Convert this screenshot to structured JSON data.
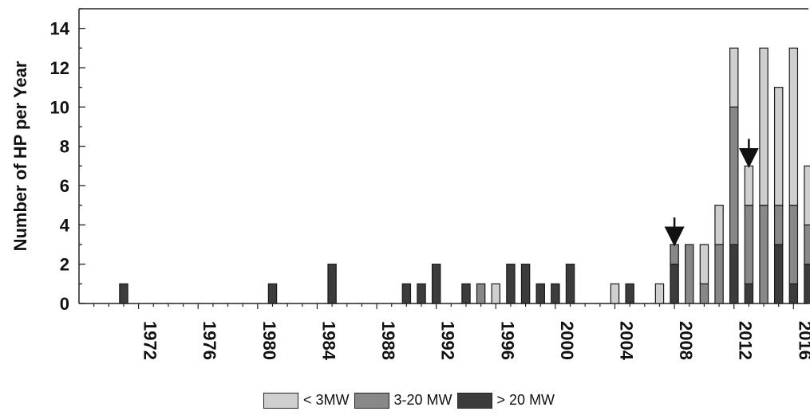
{
  "chart_data": {
    "type": "bar",
    "stacked": true,
    "ylabel": "Number of HP per Year",
    "xlabel": "",
    "xlim": [
      1968,
      2017
    ],
    "ylim": [
      0,
      15
    ],
    "yticks": [
      0,
      2,
      4,
      6,
      8,
      10,
      12,
      14
    ],
    "xticks": [
      1972,
      1976,
      1980,
      1984,
      1988,
      1992,
      1996,
      2000,
      2004,
      2008,
      2012,
      2016
    ],
    "x": [
      1971,
      1981,
      1985,
      1990,
      1991,
      1992,
      1994,
      1995,
      1996,
      1997,
      1998,
      1999,
      2000,
      2001,
      2004,
      2005,
      2007,
      2008,
      2009,
      2010,
      2011,
      2012,
      2013,
      2014,
      2015,
      2016,
      2017
    ],
    "series": [
      {
        "name": "> 20 MW",
        "color": "#3c3c3c",
        "values": [
          1,
          1,
          2,
          1,
          1,
          2,
          1,
          0,
          0,
          2,
          2,
          1,
          1,
          2,
          0,
          1,
          0,
          2,
          0,
          0,
          0,
          3,
          1,
          0,
          3,
          1,
          2
        ]
      },
      {
        "name": "3-20 MW",
        "color": "#888888",
        "values": [
          0,
          0,
          0,
          0,
          0,
          0,
          0,
          1,
          0,
          0,
          0,
          0,
          0,
          0,
          0,
          0,
          0,
          1,
          3,
          1,
          3,
          7,
          4,
          5,
          2,
          4,
          2
        ]
      },
      {
        "name": "< 3MW",
        "color": "#cfcfcf",
        "values": [
          0,
          0,
          0,
          0,
          0,
          0,
          0,
          0,
          1,
          0,
          0,
          0,
          0,
          0,
          1,
          0,
          1,
          0,
          0,
          2,
          2,
          3,
          2,
          8,
          6,
          8,
          3
        ]
      }
    ],
    "annotations": [
      {
        "type": "arrow",
        "x": 2008,
        "y": 3
      },
      {
        "type": "arrow",
        "x": 2013,
        "y": 13
      }
    ],
    "legend_position": "bottom-center",
    "grid": false
  }
}
